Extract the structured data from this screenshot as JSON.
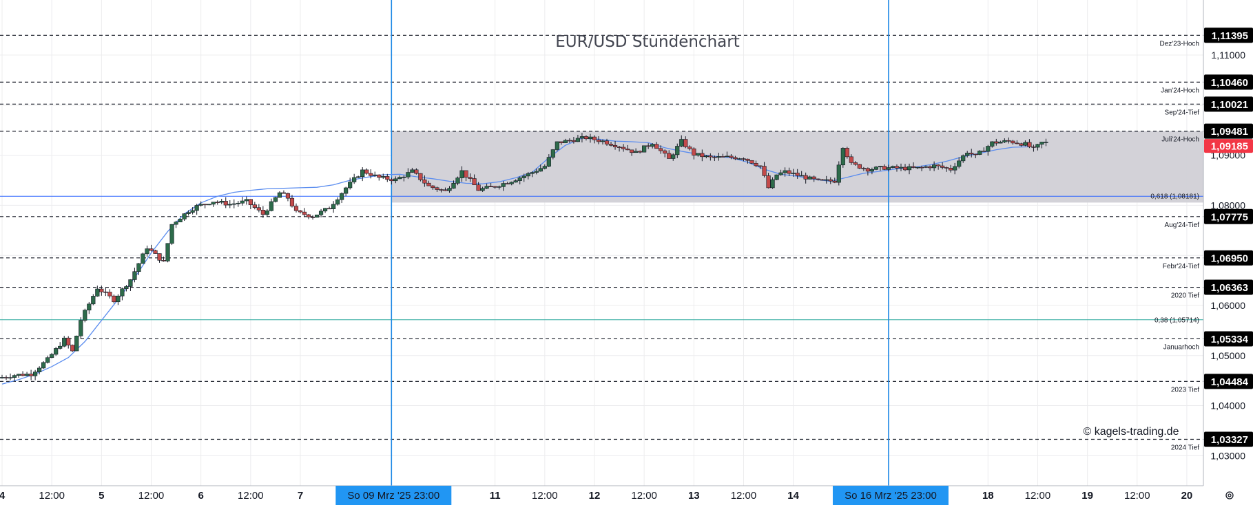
{
  "chart_data": {
    "type": "candlestick",
    "title": "EUR/USD Stundenchart",
    "watermark": "© kagels-trading.de",
    "ylim": [
      1.024,
      1.121
    ],
    "y_ticks": [
      "1,11000",
      "1,10000",
      "1,09000",
      "1,08000",
      "1,07000",
      "1,06000",
      "1,05000",
      "1,04000",
      "1,03000"
    ],
    "x_ticks": [
      {
        "label": "4",
        "t": 0.0,
        "bold": true
      },
      {
        "label": "12:00",
        "t": 12,
        "bold": false
      },
      {
        "label": "5",
        "t": 24,
        "bold": true
      },
      {
        "label": "12:00",
        "t": 36,
        "bold": false
      },
      {
        "label": "6",
        "t": 48,
        "bold": true
      },
      {
        "label": "12:00",
        "t": 60,
        "bold": false
      },
      {
        "label": "7",
        "t": 72,
        "bold": true
      },
      {
        "label": "11",
        "t": 119,
        "bold": true
      },
      {
        "label": "12:00",
        "t": 131,
        "bold": false
      },
      {
        "label": "12",
        "t": 143,
        "bold": true
      },
      {
        "label": "12:00",
        "t": 155,
        "bold": false
      },
      {
        "label": "13",
        "t": 167,
        "bold": true
      },
      {
        "label": "12:00",
        "t": 179,
        "bold": false
      },
      {
        "label": "14",
        "t": 191,
        "bold": true
      },
      {
        "label": "18",
        "t": 238,
        "bold": true
      },
      {
        "label": "12:00",
        "t": 250,
        "bold": false
      },
      {
        "label": "19",
        "t": 262,
        "bold": true
      },
      {
        "label": "12:00",
        "t": 274,
        "bold": false
      },
      {
        "label": "20",
        "t": 286,
        "bold": true
      }
    ],
    "x_range": [
      -0.5,
      290
    ],
    "levels": [
      {
        "price": 1.11395,
        "badge": "1,11395",
        "label": "Dez'23-Hoch"
      },
      {
        "price": 1.1046,
        "badge": "1,10460",
        "label": "Jan'24-Hoch"
      },
      {
        "price": 1.10021,
        "badge": "1,10021",
        "label": "Sep'24-Tief"
      },
      {
        "price": 1.09481,
        "badge": "1,09481",
        "label": "Juli'24-Hoch"
      },
      {
        "price": 1.07775,
        "badge": "1,07775",
        "label": "Aug'24-Tief"
      },
      {
        "price": 1.0695,
        "badge": "1,06950",
        "label": "Febr'24-Tief"
      },
      {
        "price": 1.06363,
        "badge": "1,06363",
        "label": "2020 Tief"
      },
      {
        "price": 1.05334,
        "badge": "1,05334",
        "label": "Januarhoch"
      },
      {
        "price": 1.04484,
        "badge": "1,04484",
        "label": "2023 Tief"
      },
      {
        "price": 1.03327,
        "badge": "1,03327",
        "label": "2024 Tief"
      }
    ],
    "fib_levels": [
      {
        "price": 1.08181,
        "label": "0,618 (1,08181)",
        "color": "#2962ff"
      },
      {
        "price": 1.05714,
        "label": "0,38 (1,05714)",
        "color": "#26a69a"
      }
    ],
    "current_price": {
      "value": 1.09185,
      "badge": "1,09185"
    },
    "range_box": {
      "t_start": 94,
      "t_end": 290,
      "high": 1.09481,
      "low": 1.08055
    },
    "vertical_markers": [
      {
        "t": 94,
        "label": "So 09 Mrz '25   23:00"
      },
      {
        "t": 214,
        "label": "So 16 Mrz '25   23:00"
      }
    ],
    "moving_average": [
      [
        0,
        1.0443
      ],
      [
        4,
        1.0452
      ],
      [
        8,
        1.0463
      ],
      [
        12,
        1.0478
      ],
      [
        16,
        1.0496
      ],
      [
        20,
        1.0528
      ],
      [
        24,
        1.057
      ],
      [
        28,
        1.0612
      ],
      [
        32,
        1.0655
      ],
      [
        36,
        1.0705
      ],
      [
        40,
        1.0748
      ],
      [
        44,
        1.0783
      ],
      [
        48,
        1.0805
      ],
      [
        52,
        1.0818
      ],
      [
        56,
        1.0826
      ],
      [
        60,
        1.083
      ],
      [
        64,
        1.0833
      ],
      [
        68,
        1.0834
      ],
      [
        72,
        1.0835
      ],
      [
        76,
        1.0836
      ],
      [
        80,
        1.0841
      ],
      [
        84,
        1.085
      ],
      [
        88,
        1.0856
      ],
      [
        92,
        1.0861
      ],
      [
        96,
        1.0862
      ],
      [
        100,
        1.0857
      ],
      [
        104,
        1.0853
      ],
      [
        108,
        1.0848
      ],
      [
        112,
        1.0844
      ],
      [
        116,
        1.0843
      ],
      [
        120,
        1.0847
      ],
      [
        124,
        1.0855
      ],
      [
        128,
        1.0866
      ],
      [
        132,
        1.0895
      ],
      [
        136,
        1.092
      ],
      [
        140,
        1.0934
      ],
      [
        144,
        1.0932
      ],
      [
        148,
        1.0928
      ],
      [
        152,
        1.0927
      ],
      [
        156,
        1.0925
      ],
      [
        160,
        1.0915
      ],
      [
        164,
        1.0908
      ],
      [
        168,
        1.0902
      ],
      [
        172,
        1.0898
      ],
      [
        176,
        1.0895
      ],
      [
        180,
        1.0886
      ],
      [
        184,
        1.0872
      ],
      [
        188,
        1.0862
      ],
      [
        192,
        1.0858
      ],
      [
        196,
        1.0852
      ],
      [
        200,
        1.0848
      ],
      [
        204,
        1.0856
      ],
      [
        208,
        1.0864
      ],
      [
        212,
        1.0868
      ],
      [
        216,
        1.0873
      ],
      [
        220,
        1.0876
      ],
      [
        224,
        1.0881
      ],
      [
        228,
        1.0888
      ],
      [
        232,
        1.0897
      ],
      [
        236,
        1.0904
      ],
      [
        240,
        1.0911
      ],
      [
        244,
        1.0916
      ],
      [
        248,
        1.0917
      ]
    ],
    "price_path": [
      [
        0,
        1.0455
      ],
      [
        4,
        1.0461
      ],
      [
        8,
        1.0463
      ],
      [
        12,
        1.0492
      ],
      [
        16,
        1.0532
      ],
      [
        18,
        1.0508
      ],
      [
        20,
        1.0571
      ],
      [
        24,
        1.0635
      ],
      [
        28,
        1.0611
      ],
      [
        32,
        1.0652
      ],
      [
        36,
        1.0716
      ],
      [
        40,
        1.0686
      ],
      [
        42,
        1.0762
      ],
      [
        46,
        1.0789
      ],
      [
        48,
        1.0798
      ],
      [
        52,
        1.0808
      ],
      [
        56,
        1.0802
      ],
      [
        60,
        1.0808
      ],
      [
        64,
        1.0782
      ],
      [
        68,
        1.0825
      ],
      [
        70,
        1.0815
      ],
      [
        72,
        1.0786
      ],
      [
        76,
        1.0778
      ],
      [
        80,
        1.0795
      ],
      [
        84,
        1.0835
      ],
      [
        88,
        1.0869
      ],
      [
        92,
        1.0855
      ],
      [
        96,
        1.0851
      ],
      [
        100,
        1.0868
      ],
      [
        104,
        1.0838
      ],
      [
        108,
        1.0828
      ],
      [
        112,
        1.0868
      ],
      [
        116,
        1.0831
      ],
      [
        120,
        1.0838
      ],
      [
        124,
        1.0849
      ],
      [
        128,
        1.0862
      ],
      [
        132,
        1.0878
      ],
      [
        135,
        1.0925
      ],
      [
        139,
        1.0931
      ],
      [
        142,
        1.0935
      ],
      [
        146,
        1.0928
      ],
      [
        150,
        1.0918
      ],
      [
        154,
        1.0905
      ],
      [
        158,
        1.0925
      ],
      [
        162,
        1.0892
      ],
      [
        165,
        1.0928
      ],
      [
        168,
        1.0902
      ],
      [
        172,
        1.0895
      ],
      [
        176,
        1.0896
      ],
      [
        180,
        1.0895
      ],
      [
        184,
        1.0878
      ],
      [
        186,
        1.0835
      ],
      [
        188,
        1.0861
      ],
      [
        190,
        1.0867
      ],
      [
        194,
        1.0858
      ],
      [
        198,
        1.0848
      ],
      [
        202,
        1.0849
      ],
      [
        204,
        1.0918
      ],
      [
        206,
        1.0882
      ],
      [
        210,
        1.0872
      ],
      [
        214,
        1.0875
      ],
      [
        218,
        1.0874
      ],
      [
        222,
        1.0874
      ],
      [
        226,
        1.0879
      ],
      [
        230,
        1.0872
      ],
      [
        234,
        1.0907
      ],
      [
        236,
        1.0898
      ],
      [
        240,
        1.0925
      ],
      [
        244,
        1.0928
      ],
      [
        248,
        1.0922
      ],
      [
        250,
        1.0912
      ],
      [
        252,
        1.0925
      ]
    ],
    "colors": {
      "up": "#2d6b4a",
      "down": "#c34a4a",
      "wick": "#131722",
      "ma": "#5b8def",
      "marker": "#1e88e5",
      "marker_label_bg": "#2196f3",
      "box": "#d1d0d6",
      "current_badge": "#f23645",
      "level_badge": "#000000",
      "grid": "#ececee"
    }
  }
}
